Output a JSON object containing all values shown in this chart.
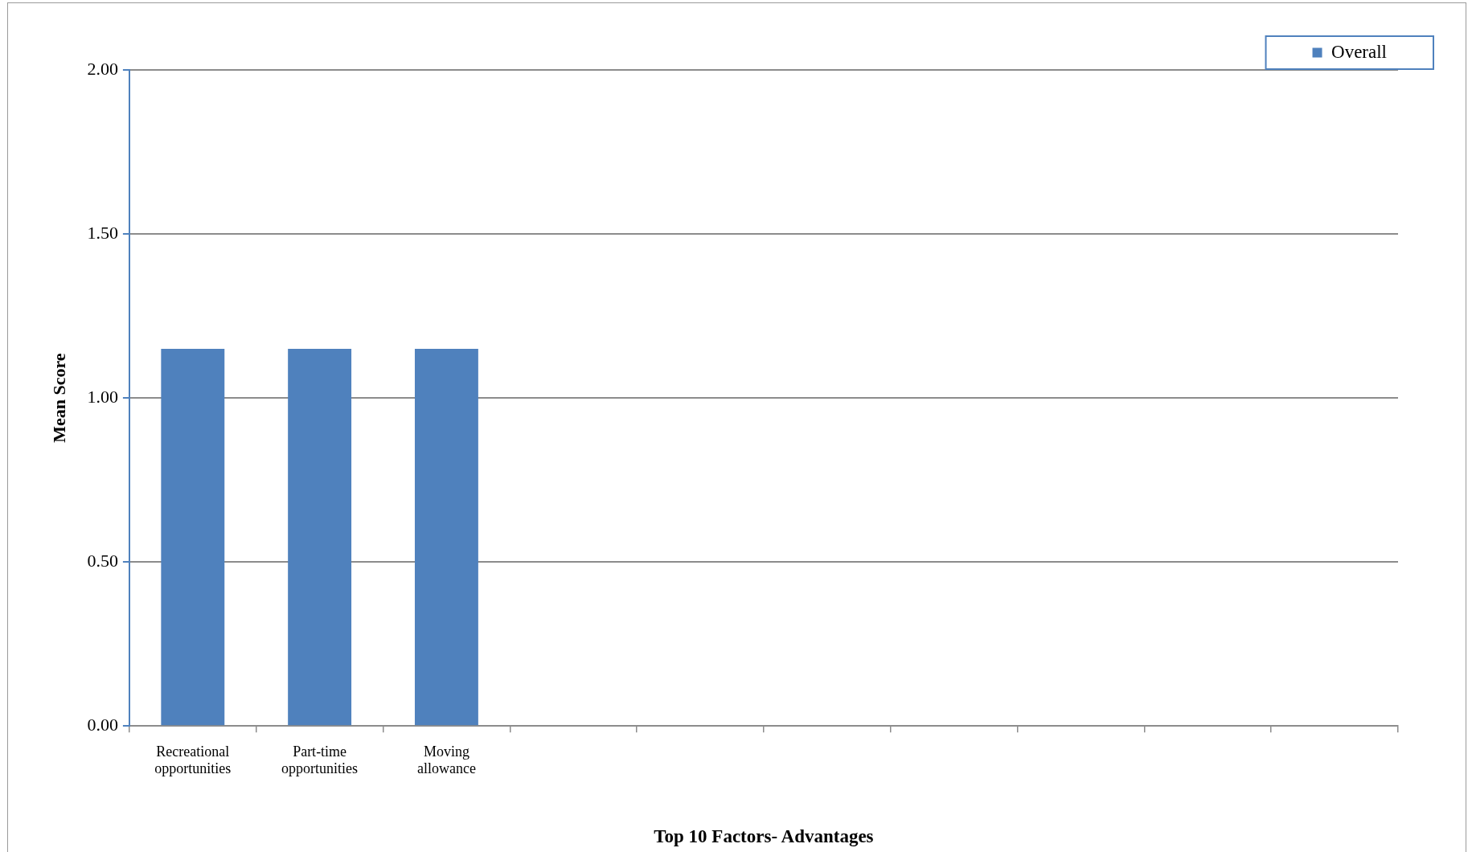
{
  "chart_data": {
    "type": "bar",
    "xlabel": "Top 10 Factors- Advantages",
    "ylabel": "Mean Score",
    "categories": [
      "Recreational opportunities",
      "Part-time opportunities",
      "Moving allowance",
      null,
      null,
      null,
      null,
      null,
      null,
      null
    ],
    "series": [
      {
        "name": "Overall",
        "color": "#4f81bd",
        "values": [
          1.15,
          1.15,
          1.15,
          null,
          null,
          null,
          null,
          null,
          null,
          null
        ]
      }
    ],
    "ylim": [
      0,
      2
    ],
    "yticks": [
      {
        "value": 0,
        "label": "0.00"
      },
      {
        "value": 0.5,
        "label": "0.50"
      },
      {
        "value": 1,
        "label": "1.00"
      },
      {
        "value": 1.5,
        "label": "1.50"
      },
      {
        "value": 2,
        "label": "2.00"
      }
    ],
    "grid": "y",
    "legend": "top right"
  }
}
